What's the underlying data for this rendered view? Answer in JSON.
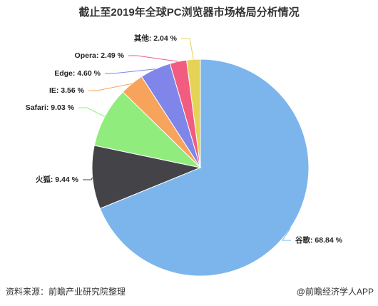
{
  "chart_data": {
    "type": "pie",
    "title": "截止至2019年全球PC浏览器市场格局分析情况",
    "values": [
      68.84,
      9.44,
      9.03,
      3.56,
      4.6,
      2.49,
      2.04
    ],
    "value_labels": [
      "谷歌: 68.84 %",
      "火狐: 9.44 %",
      "Safari: 9.03 %",
      "IE: 3.56 %",
      "Edge: 4.60 %",
      "Opera: 2.49 %",
      "其他: 2.04 %"
    ],
    "colors": [
      "#7cb5ec",
      "#434348",
      "#90ed7d",
      "#f7a35c",
      "#8085e9",
      "#f15c80",
      "#e4d354"
    ],
    "source": "资料来源：前瞻产业研究院整理",
    "credit": "@前瞻经济学人APP"
  }
}
